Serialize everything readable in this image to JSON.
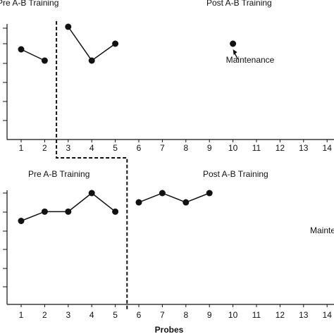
{
  "chart_data": [
    {
      "type": "line",
      "phase_labels": [
        "Pre A-B Training",
        "Post A-B Training"
      ],
      "x": [
        1,
        2,
        3,
        4,
        5,
        10
      ],
      "y": [
        80,
        70,
        100,
        70,
        85,
        85
      ],
      "segments": [
        [
          1,
          2
        ],
        [
          3,
          4,
          5
        ],
        [
          10
        ]
      ],
      "xticks": [
        1,
        2,
        3,
        4,
        5,
        6,
        7,
        8,
        9,
        10,
        11,
        12,
        13,
        14
      ],
      "xlim": [
        0.5,
        14.5
      ],
      "ylim": [
        0,
        100
      ],
      "phase_change_after": 2,
      "annotation": "Maintenance",
      "annotation_point": 10,
      "xlabel": "",
      "ylabel": ""
    },
    {
      "type": "line",
      "phase_labels": [
        "Pre A-B Training",
        "Post A-B Training"
      ],
      "x": [
        1,
        2,
        3,
        4,
        5,
        6,
        7,
        8,
        9
      ],
      "y": [
        45,
        50,
        50,
        60,
        50,
        55,
        60,
        55,
        60
      ],
      "segments": [
        [
          1,
          2,
          3,
          4,
          5
        ],
        [
          6,
          7,
          8,
          9
        ]
      ],
      "xticks": [
        1,
        2,
        3,
        4,
        5,
        6,
        7,
        8,
        9,
        10,
        11,
        12,
        13,
        14
      ],
      "xlim": [
        0.5,
        14.5
      ],
      "ylim": [
        0,
        60
      ],
      "phase_change_after": 5,
      "annotation": "Mainte",
      "xlabel": "Probes",
      "ylabel": ""
    }
  ]
}
